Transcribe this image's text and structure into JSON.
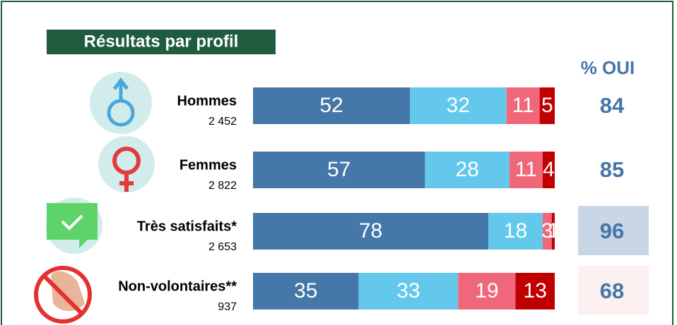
{
  "chart_data": {
    "type": "stacked-bar-horizontal",
    "title": "Résultats par profil",
    "yes_header": "% OUI",
    "categories": [
      "Hommes",
      "Femmes",
      "Très satisfaits*",
      "Non-volontaires**"
    ],
    "sample_sizes": [
      {
        "value": 2452,
        "label": "2 452"
      },
      {
        "value": 2822,
        "label": "2 822"
      },
      {
        "value": 2653,
        "label": "2 653"
      },
      {
        "value": 937,
        "label": "937"
      }
    ],
    "xlim": [
      0,
      100
    ],
    "series": [
      {
        "color": "#4577a8",
        "values": [
          52,
          57,
          78,
          35
        ]
      },
      {
        "color": "#63c8ec",
        "values": [
          32,
          28,
          18,
          33
        ]
      },
      {
        "color": "#f0677a",
        "values": [
          11,
          11,
          3,
          19
        ]
      },
      {
        "color": "#c00000",
        "values": [
          5,
          4,
          1,
          13
        ]
      }
    ],
    "yes_percent": [
      84,
      85,
      96,
      68
    ],
    "yes_box_colors": [
      null,
      null,
      "#c8d6e5",
      "#fcf0f0"
    ]
  }
}
